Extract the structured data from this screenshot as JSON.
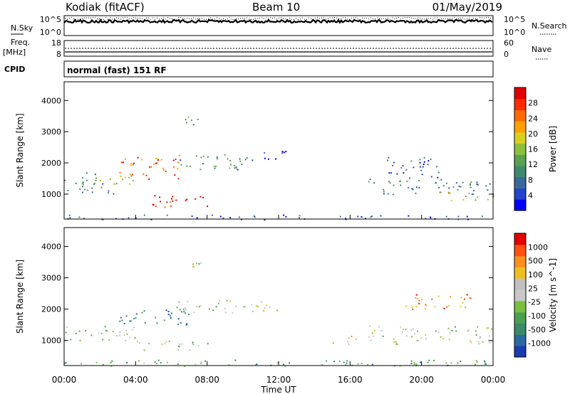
{
  "header": {
    "station": "Kodiak (fitACF)",
    "beam": "Beam 10",
    "date": "01/May/2019"
  },
  "top_panels": {
    "nsky_label": "N.Sky",
    "nsearch_label": "N.Search",
    "nsky_ticks": [
      "10^5",
      "10^0"
    ],
    "freq_label": "Freq.",
    "freq_unit": "[MHz]",
    "freq_ticks": [
      "18",
      "8"
    ],
    "nave_label": "Nave",
    "nave_ticks": [
      "60",
      "0"
    ],
    "cpid_label": "CPID",
    "cpid_text": "normal (fast) 151 RF"
  },
  "chart_data": [
    {
      "type": "heatmap",
      "name": "power",
      "ylabel": "Slant Range [km]",
      "yticks": [
        1000,
        2000,
        3000,
        4000
      ],
      "ylim": [
        200,
        4600
      ],
      "xlim": [
        0,
        24
      ],
      "colorbar": {
        "label": "Power [dB]",
        "ticks": [
          4,
          8,
          12,
          16,
          20,
          24,
          28
        ],
        "colors": [
          "#0000ff",
          "#2244cc",
          "#3a6a9a",
          "#3d8a6e",
          "#5aa050",
          "#8cc03c",
          "#d8d020",
          "#ffa000",
          "#ff6a00",
          "#ff2a00",
          "#e00000"
        ]
      },
      "bands": [
        {
          "t0": 0.0,
          "t1": 3.0,
          "r0": 1000,
          "r1": 1500,
          "v": 0.3
        },
        {
          "t0": 1.0,
          "t1": 4.0,
          "r0": 1300,
          "r1": 1700,
          "v": 0.45
        },
        {
          "t0": 3.0,
          "t1": 6.5,
          "r0": 1500,
          "r1": 2200,
          "v": 0.8
        },
        {
          "t0": 4.5,
          "t1": 8.0,
          "r0": 600,
          "r1": 1000,
          "v": 0.95
        },
        {
          "t0": 6.0,
          "t1": 10.0,
          "r0": 1800,
          "r1": 2300,
          "v": 0.35
        },
        {
          "t0": 10.0,
          "t1": 12.5,
          "r0": 2100,
          "r1": 2400,
          "v": 0.15
        },
        {
          "t0": 6.0,
          "t1": 7.5,
          "r0": 3200,
          "r1": 3500,
          "v": 0.4
        },
        {
          "t0": 17.0,
          "t1": 24.0,
          "r0": 1000,
          "r1": 1500,
          "v": 0.3
        },
        {
          "t0": 18.0,
          "t1": 21.0,
          "r0": 1500,
          "r1": 2200,
          "v": 0.2
        },
        {
          "t0": 21.0,
          "t1": 24.0,
          "r0": 800,
          "r1": 1100,
          "v": 0.55
        },
        {
          "t0": 0.0,
          "t1": 24.0,
          "r0": 200,
          "r1": 350,
          "v": 0.15
        }
      ]
    },
    {
      "type": "heatmap",
      "name": "velocity",
      "ylabel": "Slant Range [km]",
      "yticks": [
        1000,
        2000,
        3000,
        4000
      ],
      "ylim": [
        200,
        4600
      ],
      "xlim": [
        0,
        24
      ],
      "colorbar": {
        "label": "Velocity [m s^-1]",
        "ticks": [
          1000,
          500,
          100,
          25,
          -25,
          -100,
          -500,
          -1000
        ],
        "colors": [
          "#1a3ab0",
          "#2a6aa0",
          "#3a8a6a",
          "#4aa050",
          "#7ac040",
          "#c8c8c8",
          "#c0c0c0",
          "#f0c020",
          "#ff9020",
          "#ff5010",
          "#e00000"
        ]
      },
      "bands": [
        {
          "t0": 0.0,
          "t1": 4.0,
          "r0": 1000,
          "r1": 1500,
          "v": 0.45
        },
        {
          "t0": 3.0,
          "t1": 7.0,
          "r0": 1500,
          "r1": 2100,
          "v": 0.2
        },
        {
          "t0": 4.0,
          "t1": 8.5,
          "r0": 700,
          "r1": 1000,
          "v": 0.5
        },
        {
          "t0": 6.0,
          "t1": 12.0,
          "r0": 1900,
          "r1": 2300,
          "v": 0.5
        },
        {
          "t0": 6.0,
          "t1": 8.0,
          "r0": 3300,
          "r1": 3500,
          "v": 0.5
        },
        {
          "t0": 15.0,
          "t1": 16.5,
          "r0": 900,
          "r1": 1200,
          "v": 0.75
        },
        {
          "t0": 17.0,
          "t1": 24.0,
          "r0": 900,
          "r1": 1500,
          "v": 0.5
        },
        {
          "t0": 19.0,
          "t1": 23.0,
          "r0": 2000,
          "r1": 2500,
          "v": 0.8
        },
        {
          "t0": 0.0,
          "t1": 24.0,
          "r0": 200,
          "r1": 400,
          "v": 0.3
        }
      ]
    }
  ],
  "xaxis": {
    "xlabel": "Time UT",
    "ticks": [
      "00:00",
      "04:00",
      "08:00",
      "12:00",
      "16:00",
      "20:00",
      "00:00"
    ]
  }
}
